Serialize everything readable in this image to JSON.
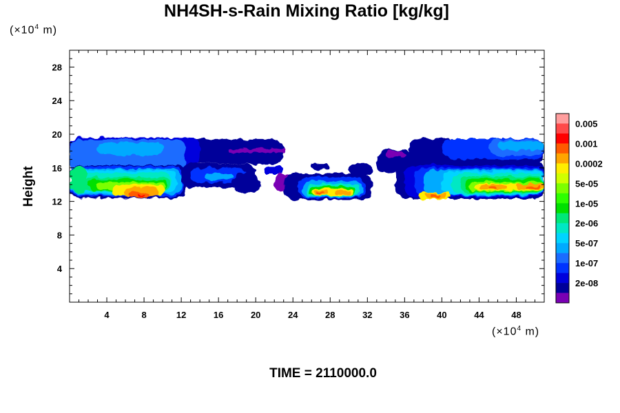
{
  "chart_data": {
    "type": "heatmap",
    "title": "NH4SH-s-Rain Mixing Ratio [kg/kg]",
    "xlabel": "",
    "ylabel": "Height",
    "x_unit": "(×10⁴ m)",
    "y_unit": "(×10⁴ m)",
    "xlim": [
      0,
      51
    ],
    "ylim": [
      0,
      30
    ],
    "x_ticks": [
      4,
      8,
      12,
      16,
      20,
      24,
      28,
      32,
      36,
      40,
      44,
      48
    ],
    "y_ticks": [
      4,
      8,
      12,
      16,
      20,
      24,
      28
    ],
    "footer": "TIME = 2110000.0",
    "colorbar": {
      "labels": [
        "0.005",
        "0.001",
        "0.0002",
        "5e-05",
        "1e-05",
        "2e-06",
        "5e-07",
        "1e-07",
        "2e-08"
      ],
      "colors": [
        "#ff9e9e",
        "#ff4a4a",
        "#ff0000",
        "#ff5a00",
        "#ffa500",
        "#ffee00",
        "#d0ff00",
        "#7cff00",
        "#2eff00",
        "#00e000",
        "#00e878",
        "#00e8c4",
        "#00d4ff",
        "#00aaff",
        "#1a6cff",
        "#0033ff",
        "#0000dd",
        "#00009a",
        "#7a00b4"
      ]
    },
    "regions": [
      {
        "name": "left cloud band",
        "x": [
          0,
          24
        ],
        "y": [
          12,
          20
        ]
      },
      {
        "name": "central cloud band",
        "x": [
          22,
          33
        ],
        "y": [
          12,
          18
        ]
      },
      {
        "name": "right cloud band",
        "x": [
          33,
          51
        ],
        "y": [
          12,
          20
        ]
      }
    ]
  }
}
